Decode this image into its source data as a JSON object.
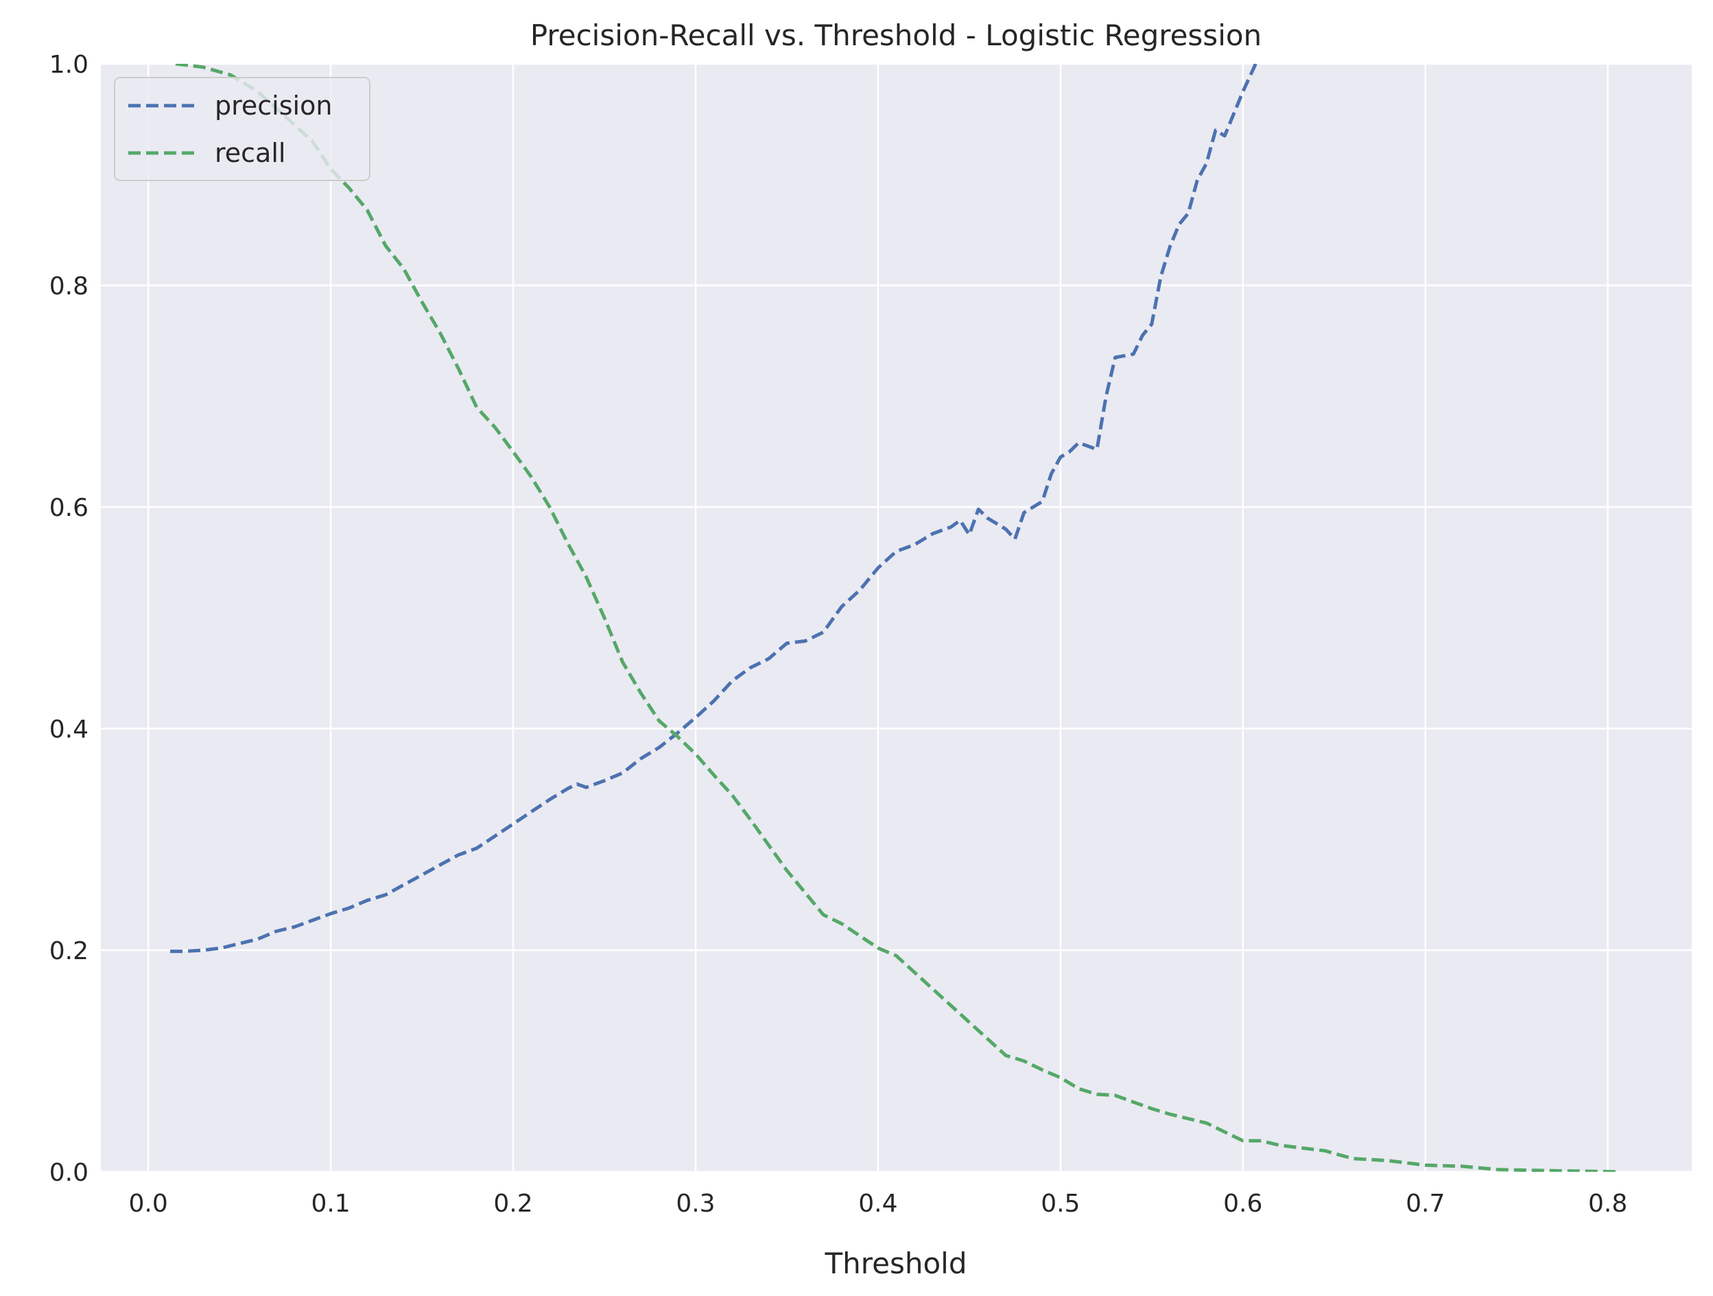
{
  "chart_data": {
    "type": "line",
    "title": "Precision-Recall vs. Threshold - Logistic Regression",
    "xlabel": "Threshold",
    "ylabel": "",
    "xlim": [
      -0.026,
      0.846
    ],
    "ylim": [
      0.0,
      1.0
    ],
    "xticks": [
      0.0,
      0.1,
      0.2,
      0.3,
      0.4,
      0.5,
      0.6,
      0.7,
      0.8
    ],
    "xtick_labels": [
      "0.0",
      "0.1",
      "0.2",
      "0.3",
      "0.4",
      "0.5",
      "0.6",
      "0.7",
      "0.8"
    ],
    "yticks": [
      0.0,
      0.2,
      0.4,
      0.6,
      0.8,
      1.0
    ],
    "ytick_labels": [
      "0.0",
      "0.2",
      "0.4",
      "0.6",
      "0.8",
      "1.0"
    ],
    "grid": true,
    "legend_position": "upper-left",
    "background": "#eaeaf2",
    "series": [
      {
        "name": "precision",
        "color": "#4c72b0",
        "linestyle": "dashed",
        "points": [
          [
            0.012,
            0.199
          ],
          [
            0.02,
            0.199
          ],
          [
            0.03,
            0.2
          ],
          [
            0.04,
            0.202
          ],
          [
            0.05,
            0.206
          ],
          [
            0.06,
            0.21
          ],
          [
            0.07,
            0.217
          ],
          [
            0.08,
            0.221
          ],
          [
            0.09,
            0.227
          ],
          [
            0.1,
            0.233
          ],
          [
            0.11,
            0.238
          ],
          [
            0.12,
            0.245
          ],
          [
            0.13,
            0.25
          ],
          [
            0.14,
            0.259
          ],
          [
            0.15,
            0.268
          ],
          [
            0.16,
            0.277
          ],
          [
            0.17,
            0.286
          ],
          [
            0.18,
            0.292
          ],
          [
            0.19,
            0.303
          ],
          [
            0.2,
            0.314
          ],
          [
            0.21,
            0.325
          ],
          [
            0.22,
            0.336
          ],
          [
            0.23,
            0.346
          ],
          [
            0.235,
            0.35
          ],
          [
            0.24,
            0.347
          ],
          [
            0.25,
            0.353
          ],
          [
            0.26,
            0.36
          ],
          [
            0.27,
            0.373
          ],
          [
            0.28,
            0.383
          ],
          [
            0.29,
            0.396
          ],
          [
            0.3,
            0.41
          ],
          [
            0.31,
            0.425
          ],
          [
            0.32,
            0.443
          ],
          [
            0.33,
            0.455
          ],
          [
            0.34,
            0.463
          ],
          [
            0.35,
            0.477
          ],
          [
            0.36,
            0.479
          ],
          [
            0.37,
            0.487
          ],
          [
            0.38,
            0.51
          ],
          [
            0.39,
            0.525
          ],
          [
            0.4,
            0.545
          ],
          [
            0.41,
            0.56
          ],
          [
            0.42,
            0.566
          ],
          [
            0.43,
            0.576
          ],
          [
            0.44,
            0.582
          ],
          [
            0.445,
            0.588
          ],
          [
            0.45,
            0.575
          ],
          [
            0.455,
            0.598
          ],
          [
            0.46,
            0.59
          ],
          [
            0.47,
            0.58
          ],
          [
            0.475,
            0.571
          ],
          [
            0.48,
            0.595
          ],
          [
            0.49,
            0.605
          ],
          [
            0.495,
            0.63
          ],
          [
            0.5,
            0.645
          ],
          [
            0.505,
            0.65
          ],
          [
            0.51,
            0.658
          ],
          [
            0.52,
            0.652
          ],
          [
            0.525,
            0.7
          ],
          [
            0.53,
            0.735
          ],
          [
            0.54,
            0.738
          ],
          [
            0.545,
            0.755
          ],
          [
            0.55,
            0.765
          ],
          [
            0.555,
            0.808
          ],
          [
            0.56,
            0.835
          ],
          [
            0.565,
            0.855
          ],
          [
            0.57,
            0.865
          ],
          [
            0.575,
            0.895
          ],
          [
            0.58,
            0.91
          ],
          [
            0.585,
            0.94
          ],
          [
            0.59,
            0.935
          ],
          [
            0.595,
            0.955
          ],
          [
            0.6,
            0.975
          ],
          [
            0.607,
            1.0
          ]
        ]
      },
      {
        "name": "recall",
        "color": "#55a868",
        "linestyle": "dashed",
        "points": [
          [
            0.015,
            1.0
          ],
          [
            0.03,
            0.997
          ],
          [
            0.045,
            0.99
          ],
          [
            0.06,
            0.975
          ],
          [
            0.07,
            0.96
          ],
          [
            0.08,
            0.945
          ],
          [
            0.09,
            0.93
          ],
          [
            0.1,
            0.905
          ],
          [
            0.11,
            0.888
          ],
          [
            0.12,
            0.868
          ],
          [
            0.13,
            0.836
          ],
          [
            0.14,
            0.815
          ],
          [
            0.15,
            0.785
          ],
          [
            0.16,
            0.757
          ],
          [
            0.17,
            0.725
          ],
          [
            0.18,
            0.69
          ],
          [
            0.19,
            0.672
          ],
          [
            0.2,
            0.65
          ],
          [
            0.21,
            0.627
          ],
          [
            0.22,
            0.6
          ],
          [
            0.23,
            0.567
          ],
          [
            0.24,
            0.537
          ],
          [
            0.25,
            0.5
          ],
          [
            0.26,
            0.46
          ],
          [
            0.27,
            0.432
          ],
          [
            0.28,
            0.407
          ],
          [
            0.29,
            0.393
          ],
          [
            0.3,
            0.377
          ],
          [
            0.31,
            0.358
          ],
          [
            0.32,
            0.34
          ],
          [
            0.33,
            0.318
          ],
          [
            0.34,
            0.295
          ],
          [
            0.35,
            0.272
          ],
          [
            0.36,
            0.252
          ],
          [
            0.37,
            0.232
          ],
          [
            0.38,
            0.224
          ],
          [
            0.39,
            0.213
          ],
          [
            0.4,
            0.202
          ],
          [
            0.41,
            0.195
          ],
          [
            0.42,
            0.18
          ],
          [
            0.43,
            0.165
          ],
          [
            0.44,
            0.15
          ],
          [
            0.45,
            0.135
          ],
          [
            0.46,
            0.12
          ],
          [
            0.47,
            0.105
          ],
          [
            0.48,
            0.1
          ],
          [
            0.49,
            0.092
          ],
          [
            0.5,
            0.085
          ],
          [
            0.51,
            0.075
          ],
          [
            0.52,
            0.07
          ],
          [
            0.53,
            0.069
          ],
          [
            0.54,
            0.063
          ],
          [
            0.55,
            0.057
          ],
          [
            0.56,
            0.052
          ],
          [
            0.57,
            0.048
          ],
          [
            0.58,
            0.044
          ],
          [
            0.59,
            0.036
          ],
          [
            0.6,
            0.028
          ],
          [
            0.61,
            0.028
          ],
          [
            0.62,
            0.024
          ],
          [
            0.63,
            0.022
          ],
          [
            0.645,
            0.019
          ],
          [
            0.66,
            0.012
          ],
          [
            0.68,
            0.01
          ],
          [
            0.7,
            0.006
          ],
          [
            0.72,
            0.005
          ],
          [
            0.74,
            0.002
          ],
          [
            0.77,
            0.001
          ],
          [
            0.806,
            0.0
          ]
        ]
      }
    ]
  }
}
